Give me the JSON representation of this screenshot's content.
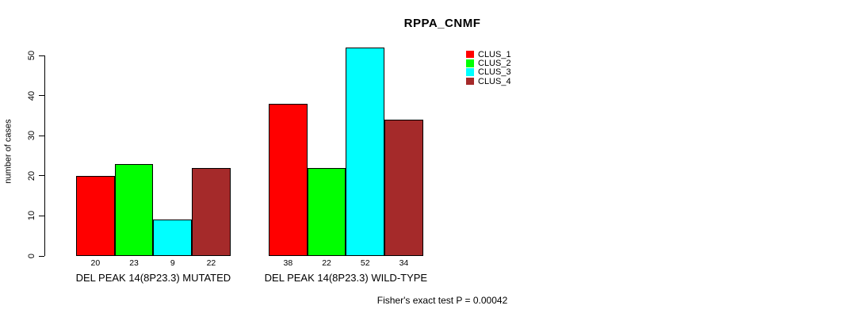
{
  "title": "RPPA_CNMF",
  "ylabel": "number of cases",
  "footnote": "Fisher's exact test P = 0.00042",
  "legend": [
    {
      "label": "CLUS_1",
      "color": "#ff0000"
    },
    {
      "label": "CLUS_2",
      "color": "#00ff00"
    },
    {
      "label": "CLUS_3",
      "color": "#00ffff"
    },
    {
      "label": "CLUS_4",
      "color": "#a52a2a"
    }
  ],
  "chart_data": {
    "type": "bar",
    "title": "RPPA_CNMF",
    "xlabel": "",
    "ylabel": "number of cases",
    "categories": [
      "DEL PEAK 14(8P23.3) MUTATED",
      "DEL PEAK 14(8P23.3) WILD-TYPE"
    ],
    "series": [
      {
        "name": "CLUS_1",
        "color": "#ff0000",
        "values": [
          20,
          38
        ]
      },
      {
        "name": "CLUS_2",
        "color": "#00ff00",
        "values": [
          23,
          22
        ]
      },
      {
        "name": "CLUS_3",
        "color": "#00ffff",
        "values": [
          9,
          52
        ]
      },
      {
        "name": "CLUS_4",
        "color": "#a52a2a",
        "values": [
          22,
          34
        ]
      }
    ],
    "bar_value_labels": [
      [
        20,
        23,
        9,
        22
      ],
      [
        38,
        22,
        52,
        34
      ]
    ],
    "yticks": [
      0,
      10,
      20,
      30,
      40,
      50
    ],
    "ylim": [
      0,
      52
    ],
    "grid": false,
    "legend_position": "upper-right-inside",
    "annotation": "Fisher's exact test P = 0.00042"
  }
}
